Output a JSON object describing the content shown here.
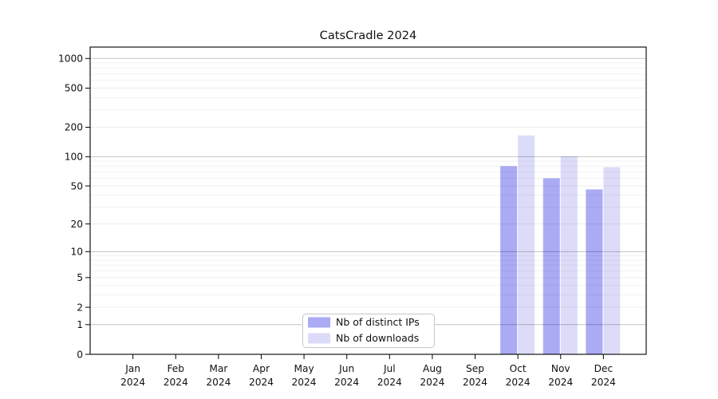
{
  "chart_data": {
    "type": "bar",
    "title": "CatsCradle 2024",
    "categories": [
      "Jan",
      "Feb",
      "Mar",
      "Apr",
      "May",
      "Jun",
      "Jul",
      "Aug",
      "Sep",
      "Oct",
      "Nov",
      "Dec"
    ],
    "category_year": "2024",
    "series": [
      {
        "name": "Nb of distinct IPs",
        "color": "#aaaaf5",
        "values": [
          0,
          0,
          0,
          0,
          0,
          0,
          0,
          0,
          0,
          80,
          60,
          46
        ]
      },
      {
        "name": "Nb of downloads",
        "color": "#dcdcf9",
        "values": [
          0,
          0,
          0,
          0,
          0,
          0,
          0,
          0,
          0,
          165,
          101,
          78
        ]
      }
    ],
    "yticks": [
      0,
      1,
      2,
      5,
      10,
      20,
      50,
      100,
      200,
      500,
      1000
    ],
    "xlabel": "",
    "ylabel": "",
    "yscale": "symlog-log1p",
    "ylim": [
      0,
      1300
    ],
    "grid": true,
    "legend": {
      "position": "lower-center-inside"
    }
  }
}
